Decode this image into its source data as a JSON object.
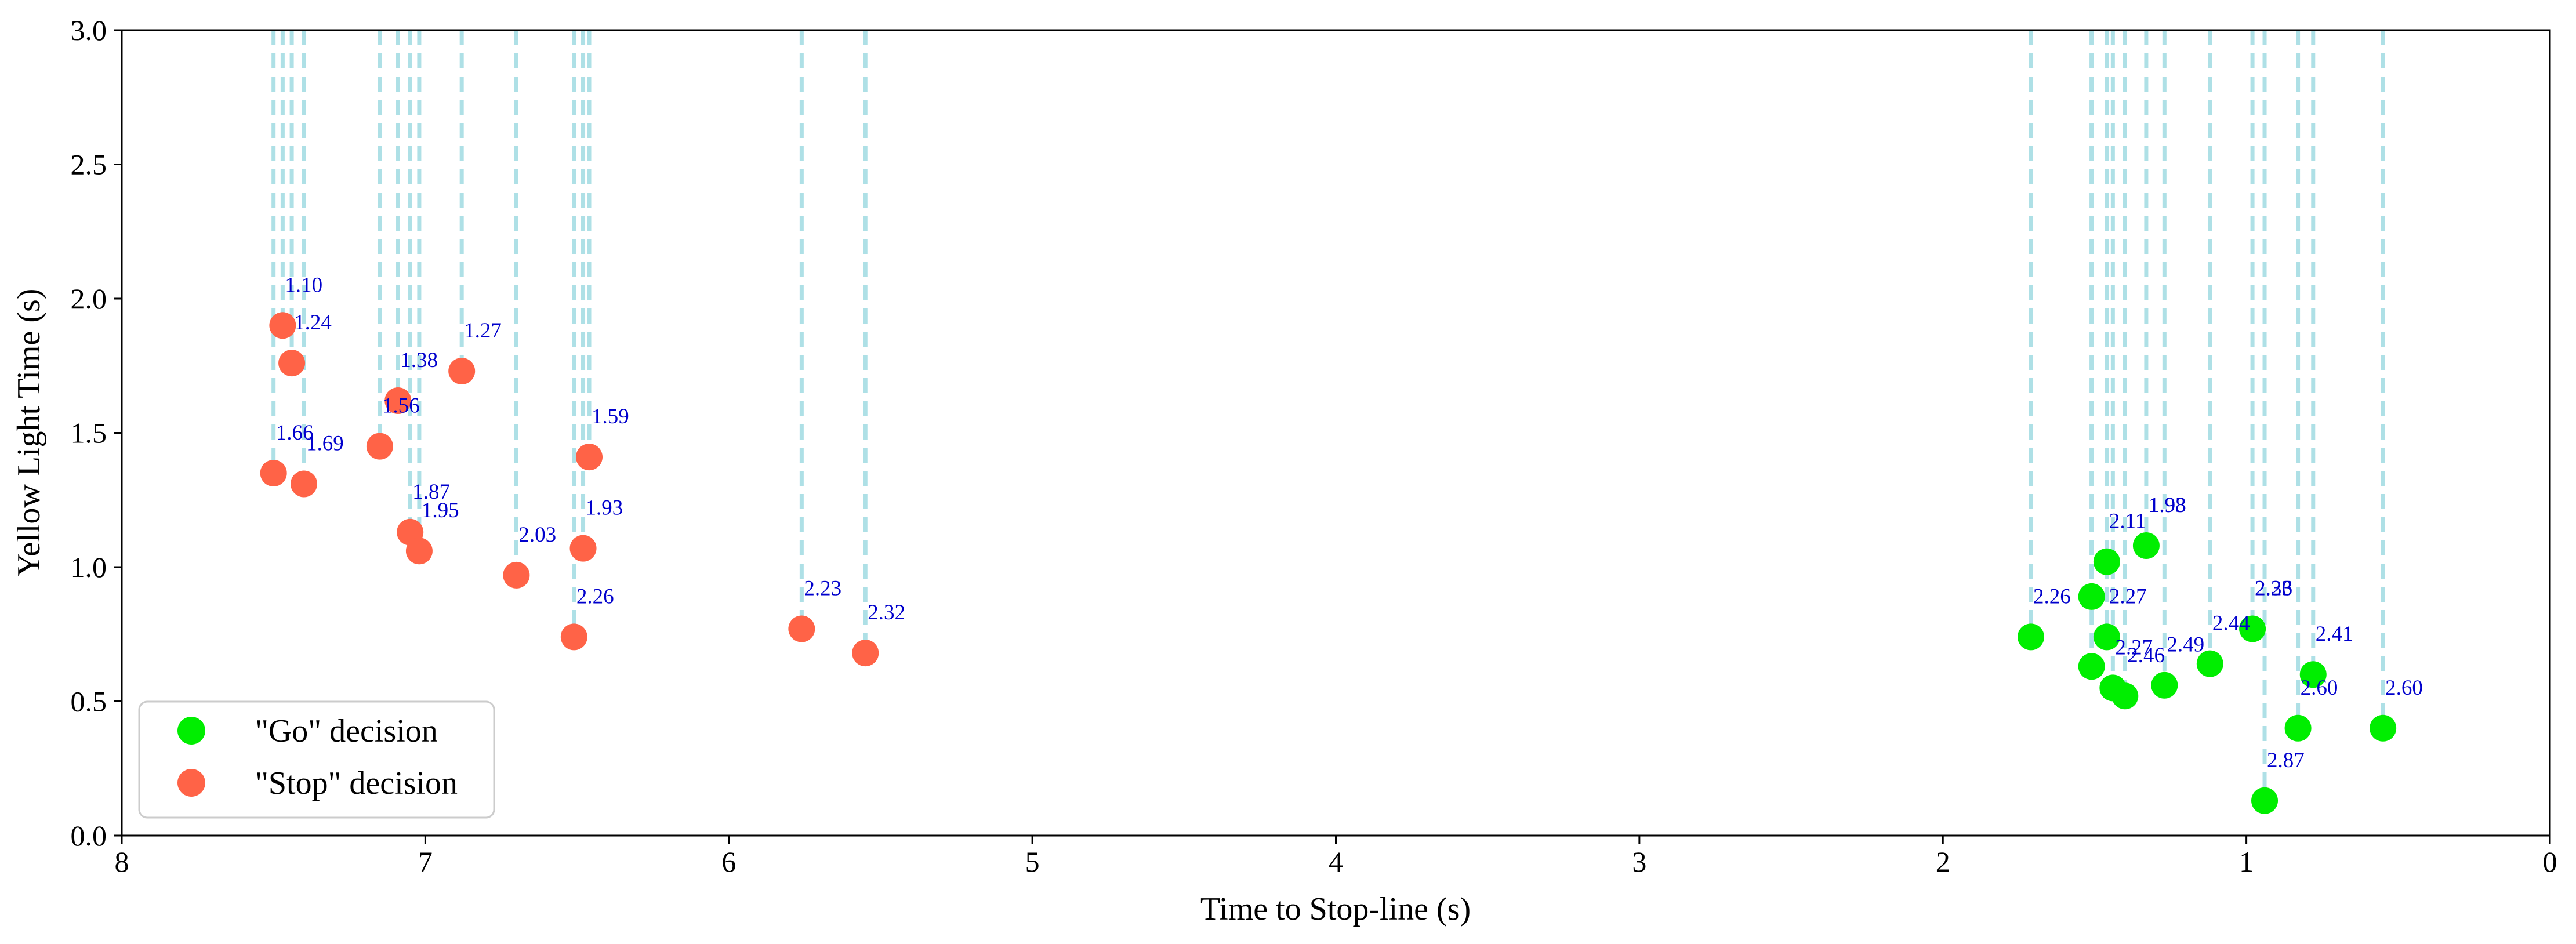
{
  "chart_data": {
    "type": "scatter",
    "title": "",
    "xlabel": "Time to Stop-line (s)",
    "ylabel": "Yellow Light Time (s)",
    "xlim": [
      8,
      0
    ],
    "x_inverted": true,
    "ylim": [
      0,
      3
    ],
    "x_ticks": [
      "8",
      "7",
      "6",
      "5",
      "4",
      "3",
      "2",
      "1",
      "0"
    ],
    "y_ticks": [
      "0.0",
      "0.5",
      "1.0",
      "1.5",
      "2.0",
      "2.5",
      "3.0"
    ],
    "grid": false,
    "legend_position": "lower-left",
    "vertical_guide_lines": true,
    "series": [
      {
        "name": "\"Go\" decision",
        "color": "#00ee00",
        "points": [
          {
            "x": 1.71,
            "y": 0.74,
            "label": "2.26"
          },
          {
            "x": 1.51,
            "y": 0.89,
            "label": ""
          },
          {
            "x": 1.51,
            "y": 0.63,
            "label": ""
          },
          {
            "x": 1.46,
            "y": 1.02,
            "label": "2.11"
          },
          {
            "x": 1.46,
            "y": 0.74,
            "label": "2.27"
          },
          {
            "x": 1.44,
            "y": 0.55,
            "label": "2.27"
          },
          {
            "x": 1.4,
            "y": 0.52,
            "label": "2.46"
          },
          {
            "x": 1.33,
            "y": 1.08,
            "label": "1.98"
          },
          {
            "x": 1.27,
            "y": 0.56,
            "label": "2.49"
          },
          {
            "x": 1.12,
            "y": 0.64,
            "label": "2.44"
          },
          {
            "x": 0.98,
            "y": 0.77,
            "label": "2.36"
          },
          {
            "x": 0.94,
            "y": 0.13,
            "label": "2.87"
          },
          {
            "x": 0.83,
            "y": 0.4,
            "label": "2.60"
          },
          {
            "x": 0.78,
            "y": 0.6,
            "label": "2.41"
          },
          {
            "x": 0.55,
            "y": 0.4,
            "label": "2.60"
          }
        ]
      },
      {
        "name": "\"Stop\" decision",
        "color": "#ff6347",
        "points": [
          {
            "x": 7.47,
            "y": 1.9,
            "label": "1.10"
          },
          {
            "x": 7.44,
            "y": 1.76,
            "label": "1.24"
          },
          {
            "x": 7.5,
            "y": 1.35,
            "label": "1.66"
          },
          {
            "x": 7.4,
            "y": 1.31,
            "label": "1.69"
          },
          {
            "x": 7.09,
            "y": 1.62,
            "label": "1.38"
          },
          {
            "x": 7.15,
            "y": 1.45,
            "label": "1.56"
          },
          {
            "x": 6.88,
            "y": 1.73,
            "label": "1.27"
          },
          {
            "x": 7.05,
            "y": 1.13,
            "label": "1.87"
          },
          {
            "x": 7.02,
            "y": 1.06,
            "label": "1.95"
          },
          {
            "x": 6.7,
            "y": 0.97,
            "label": "2.03"
          },
          {
            "x": 6.46,
            "y": 1.41,
            "label": "1.59"
          },
          {
            "x": 6.48,
            "y": 1.07,
            "label": "1.93"
          },
          {
            "x": 6.51,
            "y": 0.74,
            "label": "2.26"
          },
          {
            "x": 5.76,
            "y": 0.77,
            "label": "2.23"
          },
          {
            "x": 5.55,
            "y": 0.68,
            "label": "2.32"
          }
        ]
      }
    ],
    "extra_labels": [
      {
        "x": 1.33,
        "y": 1.08,
        "label": "1.93",
        "series": "\"Go\" decision"
      },
      {
        "x": 0.98,
        "y": 0.77,
        "label": "2.23",
        "series": "\"Go\" decision"
      }
    ],
    "colors": {
      "guide_line": "#aee0e6",
      "data_label": "#0000cc",
      "axis": "#000000"
    }
  }
}
